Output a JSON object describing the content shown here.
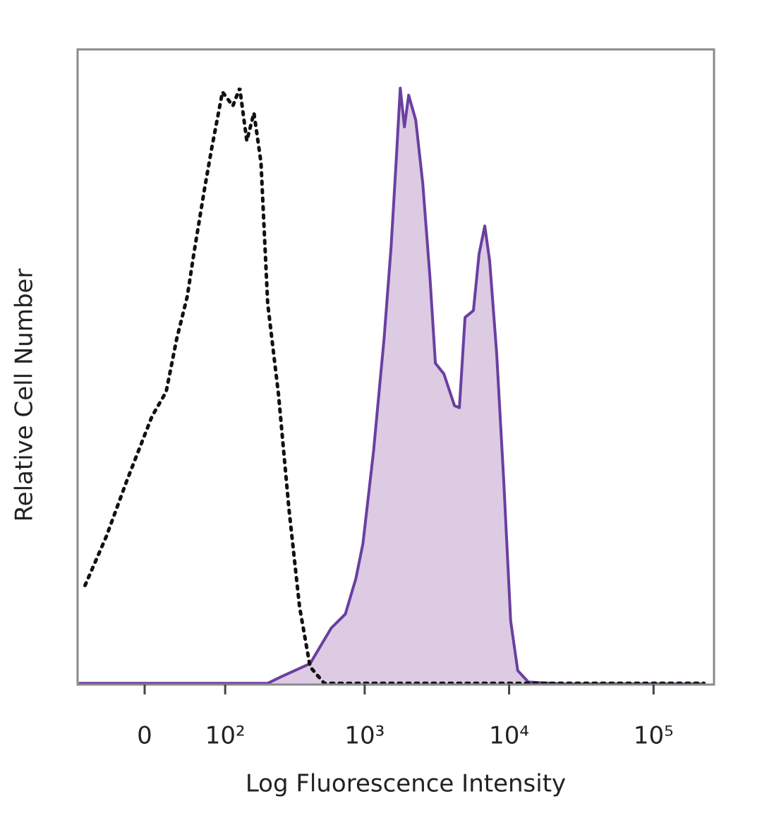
{
  "chart_data": {
    "type": "histogram-overlay",
    "x_label": "Log Fluorescence Intensity",
    "y_label": "Relative Cell Number",
    "x_scale": "biexponential",
    "xlim": [
      -77,
      262144
    ],
    "ylim": [
      0,
      100
    ],
    "xticks": [
      0,
      {
        "value": 100,
        "label": "10²"
      },
      {
        "value": 1000,
        "label": "10³"
      },
      {
        "value": 10000,
        "label": "10⁴"
      },
      {
        "value": 100000,
        "label": "10⁵"
      }
    ],
    "series": [
      {
        "style": "dotted",
        "color": "#111111",
        "x": [
          -66,
          -39,
          -17,
          7,
          21,
          32,
          44,
          52,
          66,
          77,
          95,
          115,
          130,
          147,
          166,
          187,
          209,
          250,
          296,
          352,
          417,
          523,
          223000
        ],
        "values": [
          15.6,
          23.3,
          32.2,
          42.2,
          46.1,
          54.4,
          61.1,
          67.8,
          77.8,
          84.4,
          93.3,
          91.1,
          93.9,
          85.6,
          90,
          82.2,
          60,
          45.6,
          27.8,
          12.2,
          2.8,
          0.2,
          0.2
        ]
      },
      {
        "style": "filled",
        "color": "#6a3fa0",
        "fill": "#dccbe3",
        "x": [
          -75,
          209,
          265,
          417,
          586,
          734,
          869,
          972,
          1151,
          1362,
          1524,
          1650,
          1764,
          1885,
          2016,
          2256,
          2526,
          2826,
          3090,
          3540,
          4188,
          4530,
          4956,
          5664,
          6198,
          6786,
          7332,
          8202,
          9174,
          10260,
          11478,
          13584,
          23820,
          223000
        ],
        "values": [
          0.2,
          0.2,
          1.3,
          3.3,
          8.9,
          11.1,
          16.7,
          22.2,
          36.7,
          54.4,
          68.9,
          82.2,
          93.9,
          87.8,
          92.8,
          88.9,
          78.9,
          64.4,
          50.6,
          48.9,
          43.9,
          43.6,
          57.8,
          58.9,
          67.8,
          72.2,
          66.7,
          52.2,
          32.2,
          10,
          2.2,
          0.4,
          0.1,
          0.1
        ]
      }
    ]
  }
}
